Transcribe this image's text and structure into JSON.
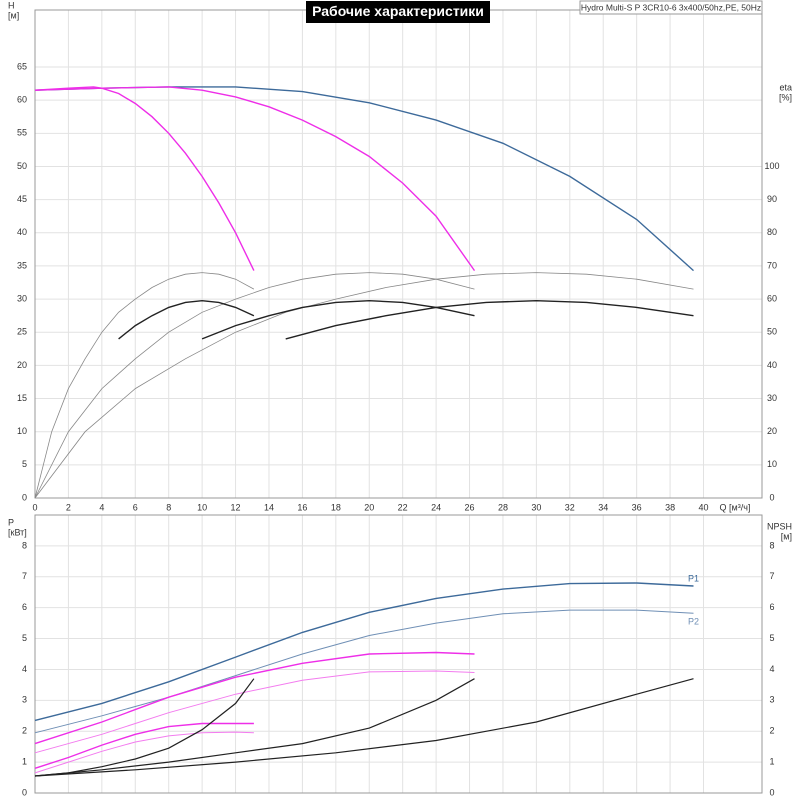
{
  "chart_data": [
    {
      "type": "line",
      "title": "Рабочие характеристики",
      "subtitle": "Hydro Multi-S P 3CR10-6 3x400/50hz,PE, 50Hz",
      "ylabel": "H",
      "yunit": "[м]",
      "y2label": "eta",
      "y2unit": "[%]",
      "xlabel": "Q [м³/ч]",
      "xlim": [
        0,
        43.5
      ],
      "xticks": [
        0,
        2,
        4,
        6,
        8,
        10,
        12,
        14,
        16,
        18,
        20,
        22,
        24,
        26,
        28,
        30,
        32,
        34,
        36,
        38,
        40
      ],
      "ylim": [
        0,
        73.6
      ],
      "yticks": [
        0,
        5,
        10,
        15,
        20,
        25,
        30,
        35,
        40,
        45,
        50,
        55,
        60,
        65
      ],
      "y2lim": [
        0,
        147.2
      ],
      "y2ticks": [
        0,
        10,
        20,
        30,
        40,
        50,
        60,
        70,
        80,
        90,
        100
      ],
      "grid": true,
      "series": [
        {
          "color": "#3d6a9a",
          "width": 1.4,
          "x": [
            0,
            4,
            8,
            12,
            16,
            20,
            24,
            28,
            32,
            36,
            39.4
          ],
          "values": [
            61.5,
            61.8,
            62,
            62,
            61.3,
            59.6,
            57,
            53.5,
            48.5,
            42,
            34.3
          ]
        },
        {
          "color": "#ee2ee8",
          "width": 1.4,
          "x": [
            0,
            4,
            8,
            10,
            12,
            14,
            16,
            18,
            20,
            22,
            24,
            26.3
          ],
          "values": [
            61.5,
            61.8,
            62,
            61.5,
            60.5,
            59,
            57,
            54.5,
            51.5,
            47.5,
            42.5,
            34.3
          ]
        },
        {
          "color": "#ee2ee8",
          "width": 1.4,
          "x": [
            0,
            2,
            3.5,
            4,
            5,
            6,
            7,
            8,
            9,
            10,
            11,
            12,
            13.1
          ],
          "values": [
            61.5,
            61.8,
            62,
            61.8,
            61,
            59.5,
            57.5,
            55,
            52,
            48.5,
            44.5,
            40,
            34.3
          ]
        },
        {
          "color": "#888888",
          "width": 0.8,
          "axis": "y2",
          "x": [
            0,
            1,
            2,
            3,
            4,
            5,
            6,
            7,
            8,
            9,
            10,
            11,
            12,
            13.1
          ],
          "values": [
            0,
            20,
            33,
            42,
            50,
            56,
            60,
            63.5,
            66,
            67.5,
            68,
            67.5,
            66,
            63
          ]
        },
        {
          "color": "#888888",
          "width": 0.8,
          "axis": "y2",
          "x": [
            0,
            2,
            4,
            6,
            8,
            10,
            12,
            14,
            16,
            18,
            20,
            22,
            24,
            26.3
          ],
          "values": [
            0,
            20,
            33,
            42,
            50,
            56,
            60,
            63.5,
            66,
            67.5,
            68,
            67.5,
            66,
            63
          ]
        },
        {
          "color": "#888888",
          "width": 0.8,
          "axis": "y2",
          "x": [
            0,
            3,
            6,
            9,
            12,
            15,
            18,
            21,
            24,
            27,
            30,
            33,
            36,
            39.4
          ],
          "values": [
            0,
            20,
            33,
            42,
            50,
            56,
            60,
            63.5,
            66,
            67.5,
            68,
            67.5,
            66,
            63
          ]
        },
        {
          "color": "#222222",
          "width": 1.4,
          "axis": "y2",
          "x": [
            5,
            6,
            7,
            8,
            9,
            10,
            11,
            12,
            13.1
          ],
          "values": [
            48,
            52,
            55,
            57.5,
            59,
            59.5,
            59,
            57.5,
            55
          ]
        },
        {
          "color": "#222222",
          "width": 1.4,
          "axis": "y2",
          "x": [
            10,
            12,
            14,
            16,
            18,
            20,
            22,
            24,
            26.3
          ],
          "values": [
            48,
            52,
            55,
            57.5,
            59,
            59.5,
            59,
            57.5,
            55
          ]
        },
        {
          "color": "#222222",
          "width": 1.4,
          "axis": "y2",
          "x": [
            15,
            18,
            21,
            24,
            27,
            30,
            33,
            36,
            39.4
          ],
          "values": [
            48,
            52,
            55,
            57.5,
            59,
            59.5,
            59,
            57.5,
            55
          ]
        }
      ]
    },
    {
      "type": "line",
      "ylabel": "P",
      "yunit": "[кВт]",
      "y2label": "NPSH",
      "y2unit": "[м]",
      "xlim": [
        0,
        43.5
      ],
      "ylim": [
        0,
        9
      ],
      "yticks": [
        0,
        1,
        2,
        3,
        4,
        5,
        6,
        7,
        8
      ],
      "y2lim": [
        0,
        9
      ],
      "y2ticks": [
        0,
        1,
        2,
        3,
        4,
        5,
        6,
        7,
        8
      ],
      "grid": true,
      "series": [
        {
          "name": "P1",
          "color": "#3d6a9a",
          "width": 1.4,
          "x": [
            0,
            4,
            8,
            12,
            16,
            20,
            24,
            28,
            32,
            36,
            39.4
          ],
          "values": [
            2.35,
            2.9,
            3.6,
            4.4,
            5.2,
            5.85,
            6.3,
            6.6,
            6.78,
            6.8,
            6.7
          ]
        },
        {
          "name": "P2",
          "color": "#6f8fb5",
          "width": 1,
          "x": [
            0,
            4,
            8,
            12,
            16,
            20,
            24,
            28,
            32,
            36,
            39.4
          ],
          "values": [
            1.95,
            2.5,
            3.1,
            3.8,
            4.5,
            5.1,
            5.5,
            5.8,
            5.92,
            5.92,
            5.82
          ]
        },
        {
          "color": "#ee2ee8",
          "width": 1.4,
          "x": [
            0,
            4,
            8,
            12,
            16,
            20,
            24,
            26.3
          ],
          "values": [
            1.6,
            2.3,
            3.1,
            3.75,
            4.2,
            4.5,
            4.55,
            4.5
          ]
        },
        {
          "color": "#f37cef",
          "width": 1,
          "x": [
            0,
            4,
            8,
            12,
            16,
            20,
            24,
            26.3
          ],
          "values": [
            1.3,
            1.9,
            2.6,
            3.2,
            3.65,
            3.92,
            3.95,
            3.9
          ]
        },
        {
          "color": "#ee2ee8",
          "width": 1.4,
          "x": [
            0,
            2,
            4,
            6,
            8,
            10,
            12,
            13.1
          ],
          "values": [
            0.8,
            1.15,
            1.55,
            1.9,
            2.15,
            2.25,
            2.25,
            2.25
          ]
        },
        {
          "color": "#f37cef",
          "width": 1,
          "x": [
            0,
            2,
            4,
            6,
            8,
            10,
            12,
            13.1
          ],
          "values": [
            0.65,
            1.0,
            1.35,
            1.65,
            1.85,
            1.95,
            1.97,
            1.95
          ]
        },
        {
          "color": "#222222",
          "width": 1.2,
          "axis": "y2",
          "x": [
            0,
            2,
            4,
            6,
            8,
            10,
            12,
            13.1
          ],
          "values": [
            0.55,
            0.65,
            0.85,
            1.1,
            1.45,
            2.05,
            2.9,
            3.7
          ]
        },
        {
          "color": "#222222",
          "width": 1.2,
          "axis": "y2",
          "x": [
            0,
            4,
            8,
            12,
            16,
            20,
            24,
            26.3
          ],
          "values": [
            0.55,
            0.75,
            1.0,
            1.3,
            1.6,
            2.1,
            3.0,
            3.7
          ]
        },
        {
          "color": "#222222",
          "width": 1.2,
          "axis": "y2",
          "x": [
            0,
            6,
            12,
            18,
            24,
            30,
            36,
            39.4
          ],
          "values": [
            0.55,
            0.75,
            1.0,
            1.3,
            1.7,
            2.3,
            3.2,
            3.7
          ]
        }
      ]
    }
  ]
}
